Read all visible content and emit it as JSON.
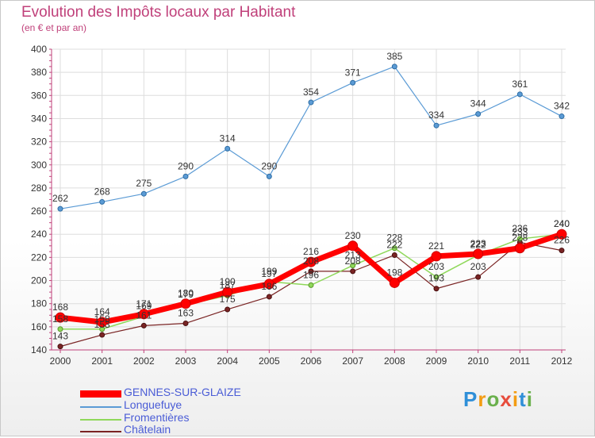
{
  "title": "Evolution des Impôts locaux par Habitant",
  "subtitle": "(en € et par an)",
  "brand": "Proxiti",
  "chart_data": {
    "type": "line",
    "x": [
      "2000",
      "2001",
      "2002",
      "2003",
      "2004",
      "2005",
      "2006",
      "2007",
      "2008",
      "2009",
      "2010",
      "2011",
      "2012"
    ],
    "ylim": [
      140,
      400
    ],
    "yticks": [
      140,
      160,
      180,
      200,
      220,
      240,
      260,
      280,
      300,
      320,
      340,
      360,
      380,
      400
    ],
    "series": [
      {
        "name": "GENNES-SUR-GLAIZE",
        "color": "#ff0000",
        "values": [
          168,
          164,
          171,
          180,
          190,
          197,
          216,
          230,
          198,
          221,
          223,
          228,
          240
        ]
      },
      {
        "name": "Longuefuye",
        "color": "#5b9bd5",
        "values": [
          262,
          268,
          275,
          290,
          314,
          290,
          354,
          371,
          385,
          334,
          344,
          361,
          342
        ]
      },
      {
        "name": "Fromentières",
        "color": "#8fd85a",
        "values": [
          158,
          158,
          169,
          179,
          187,
          199,
          196,
          213,
          228,
          203,
          222,
          236,
          240
        ]
      },
      {
        "name": "Châtelain",
        "color": "#7a2424",
        "values": [
          143,
          153,
          161,
          163,
          175,
          186,
          208,
          208,
          222,
          193,
          203,
          233,
          226
        ]
      }
    ]
  }
}
